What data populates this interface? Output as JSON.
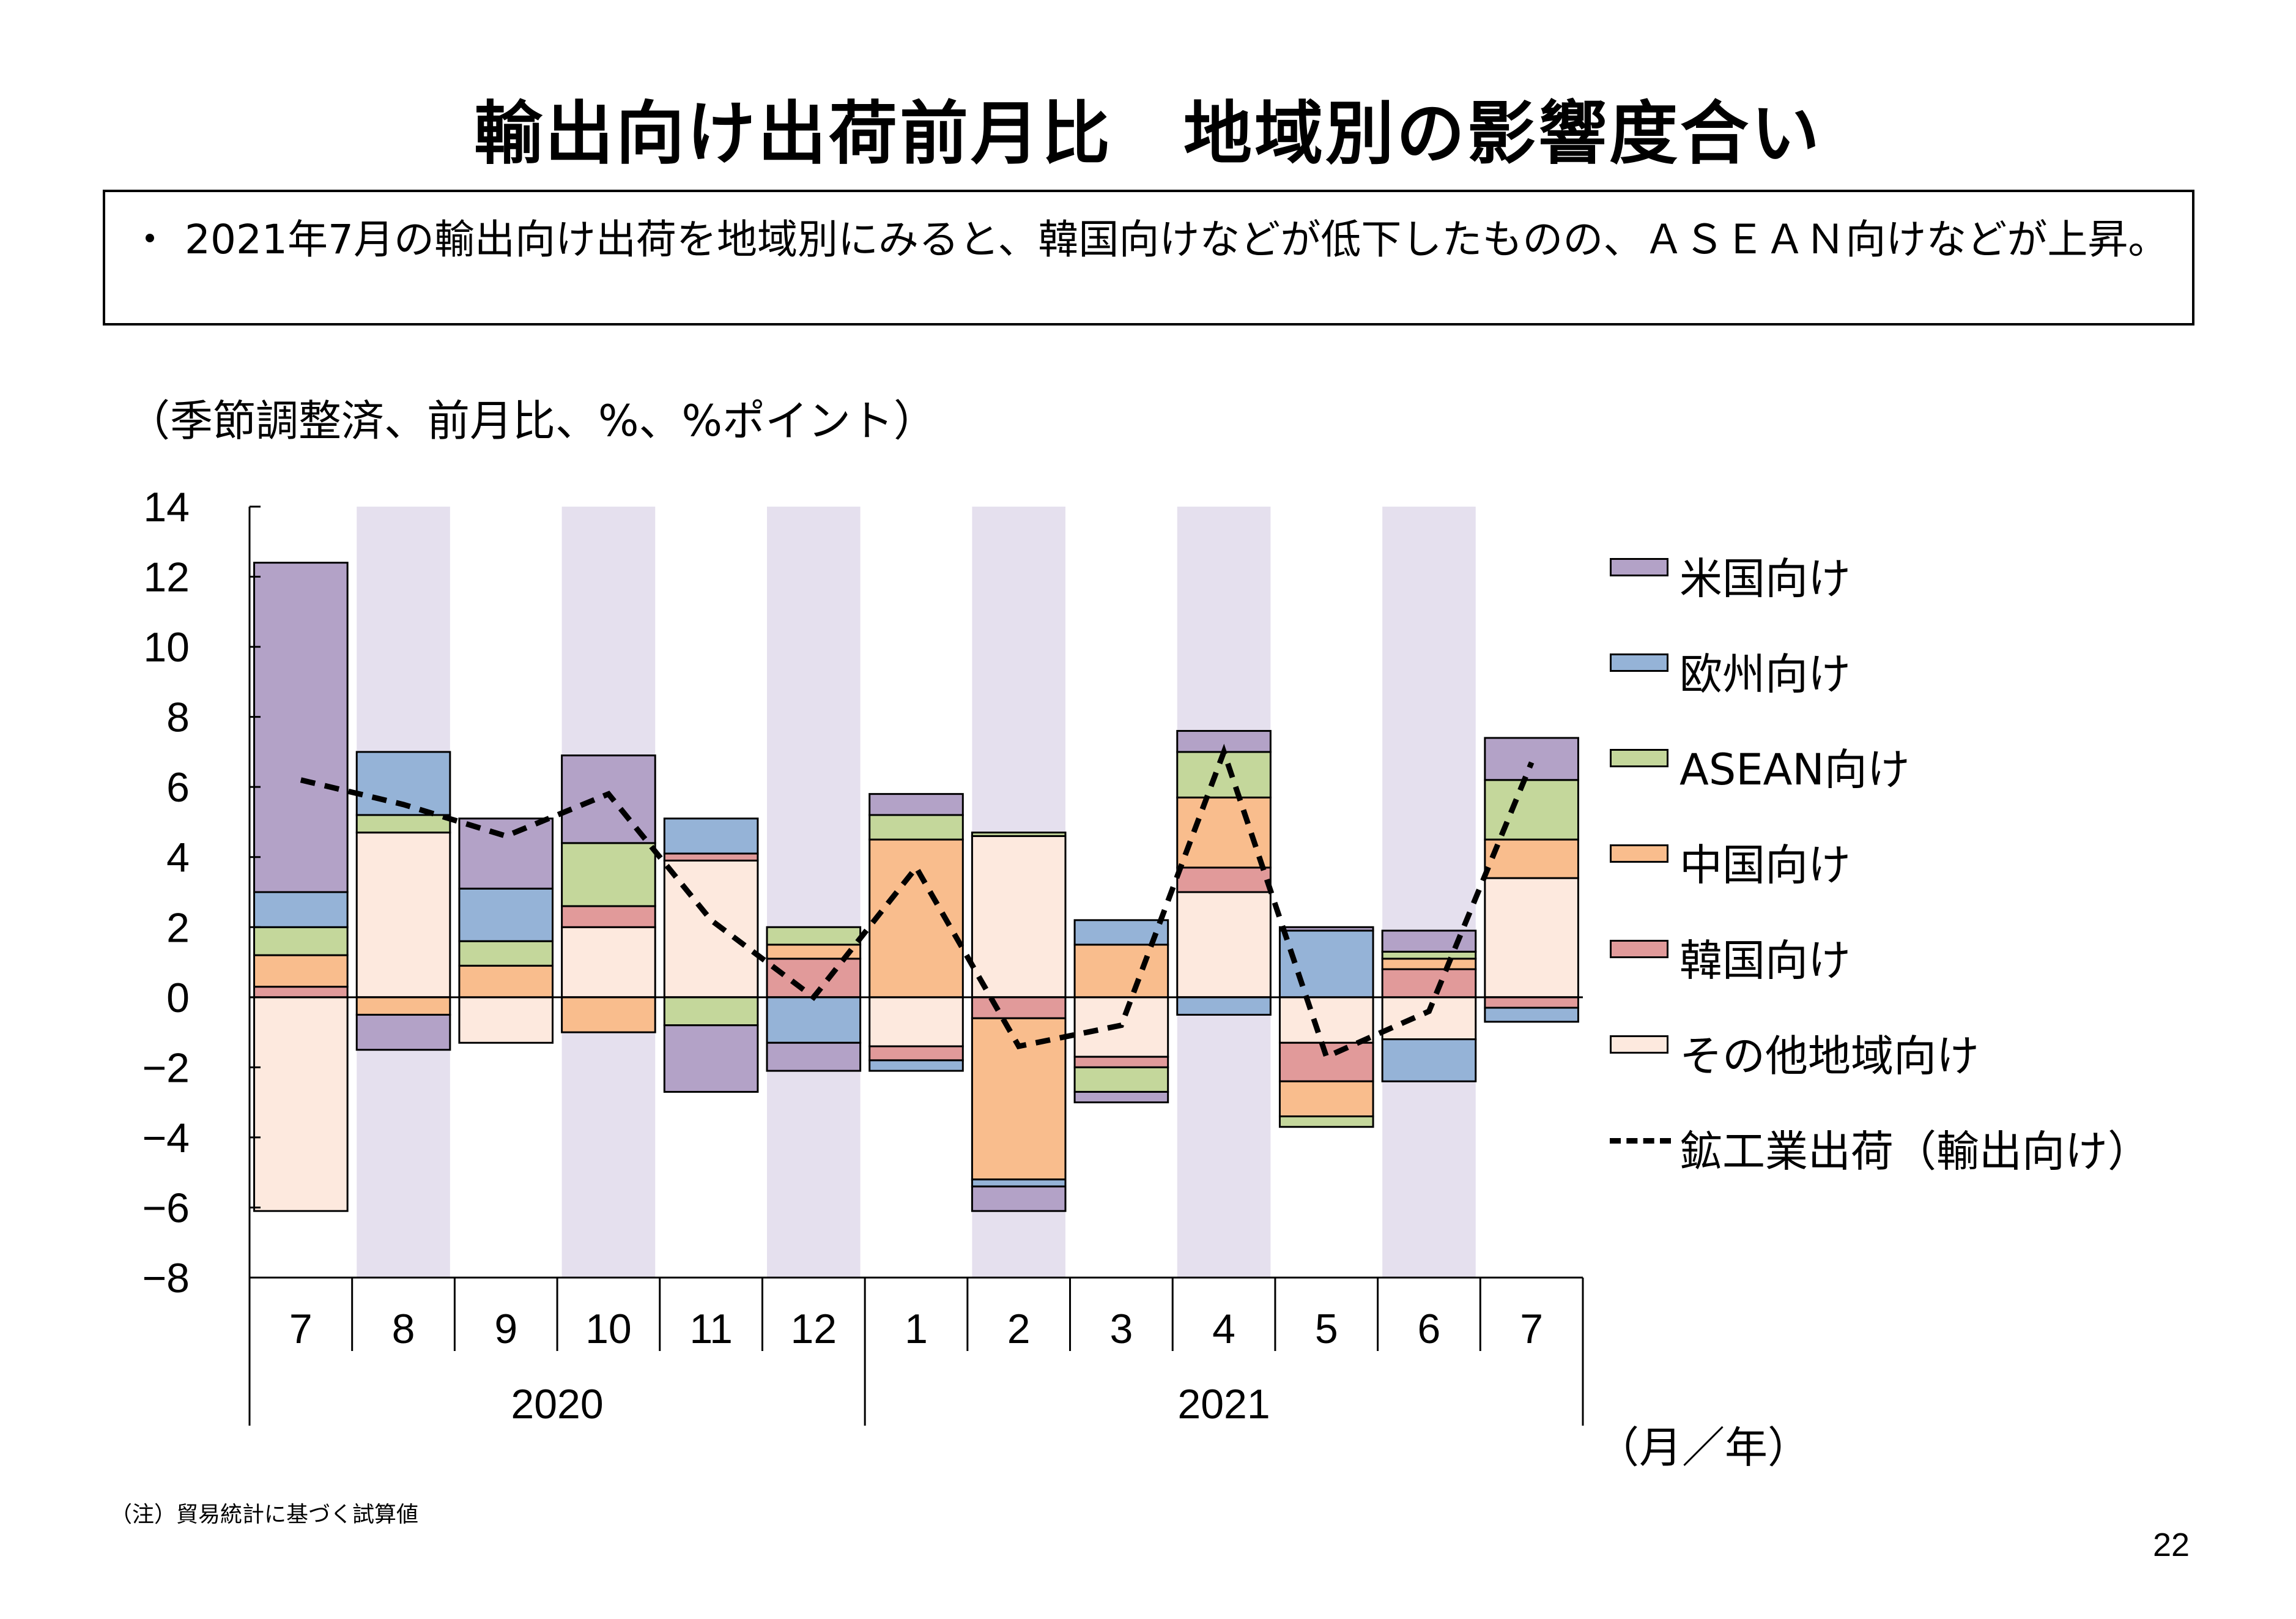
{
  "page": {
    "title": "輸出向け出荷前月比　地域別の影響度合い",
    "summary_bullet": "・",
    "summary": "2021年7月の輸出向け出荷を地域別にみると、韓国向けなどが低下したものの、ＡＳＥＡＮ向けなどが上昇。",
    "unit_note": "（季節調整済、前月比、%、%ポイント）",
    "footnote": "（注）貿易統計に基づく試算値",
    "page_number": "22"
  },
  "chart_data": {
    "type": "bar",
    "stacked": true,
    "categories": [
      "7",
      "8",
      "9",
      "10",
      "11",
      "12",
      "1",
      "2",
      "3",
      "4",
      "5",
      "6",
      "7"
    ],
    "years": [
      {
        "label": "2020",
        "start": 0,
        "end": 5
      },
      {
        "label": "2021",
        "start": 6,
        "end": 12
      }
    ],
    "axis_unit_label": "（月／年）",
    "ylim": [
      -8,
      14
    ],
    "yticks": [
      14,
      12,
      10,
      8,
      6,
      4,
      2,
      0,
      -2,
      -4,
      -6,
      -8
    ],
    "shaded_every_other_column": true,
    "shade_color": "#e5e0ee",
    "series": [
      {
        "name": "その他地域向け",
        "color": "#fde9de",
        "values": [
          -6.1,
          4.7,
          -1.3,
          2.0,
          3.9,
          0.0,
          -1.4,
          4.6,
          -1.7,
          3.0,
          -1.3,
          -1.2,
          3.4
        ]
      },
      {
        "name": "韓国向け",
        "color": "#e19a9a",
        "values": [
          0.3,
          0.0,
          0.0,
          0.6,
          0.2,
          1.1,
          -0.4,
          -0.6,
          -0.3,
          0.7,
          -1.1,
          0.8,
          -0.3
        ]
      },
      {
        "name": "中国向け",
        "color": "#f9bd8d",
        "values": [
          0.9,
          -0.5,
          0.9,
          -1.0,
          0.0,
          0.4,
          4.5,
          -4.6,
          1.5,
          2.0,
          -1.0,
          0.3,
          1.1
        ]
      },
      {
        "name": "ASEAN向け",
        "color": "#c4d79b",
        "values": [
          0.8,
          0.5,
          0.7,
          1.8,
          -0.8,
          0.5,
          0.7,
          0.1,
          -0.7,
          1.3,
          -0.3,
          0.2,
          1.7
        ]
      },
      {
        "name": "欧州向け",
        "color": "#95b3d7",
        "values": [
          1.0,
          1.8,
          1.5,
          0.0,
          1.0,
          -1.3,
          -0.3,
          -0.2,
          0.7,
          -0.5,
          1.9,
          -1.2,
          -0.4
        ]
      },
      {
        "name": "米国向け",
        "color": "#b3a2c7",
        "values": [
          9.4,
          -1.0,
          2.0,
          2.5,
          -1.9,
          -0.8,
          0.6,
          -0.7,
          -0.3,
          0.6,
          0.1,
          0.6,
          1.2
        ]
      }
    ],
    "line_series": {
      "name": "鉱工業出荷（輸出向け）",
      "style": "dashed",
      "color": "#000000",
      "values": [
        6.2,
        5.5,
        4.6,
        5.8,
        2.2,
        0.0,
        3.7,
        -1.4,
        -0.8,
        7.0,
        -1.7,
        -0.4,
        6.7
      ]
    },
    "legend_order": [
      "米国向け",
      "欧州向け",
      "ASEAN向け",
      "中国向け",
      "韓国向け",
      "その他地域向け",
      "鉱工業出荷（輸出向け）"
    ],
    "legend_position": "right"
  }
}
